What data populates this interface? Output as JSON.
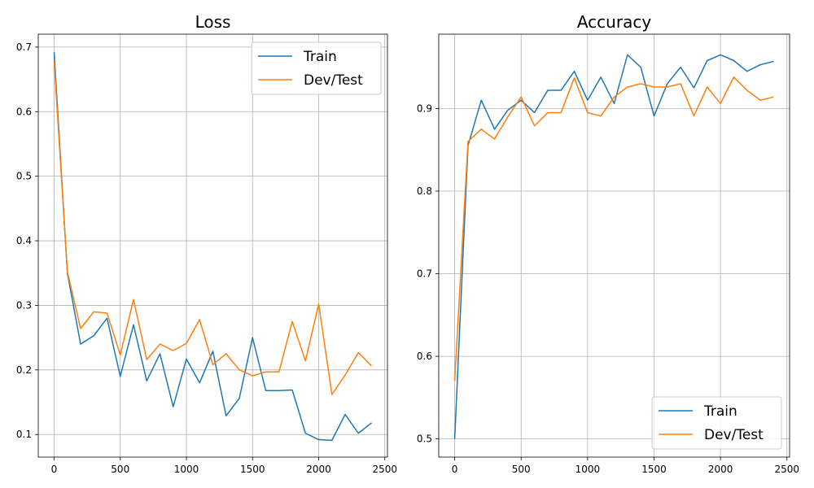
{
  "chart_data": [
    {
      "type": "line",
      "title": "Loss",
      "xlim": [
        -120,
        2520
      ],
      "ylim": [
        0.065,
        0.72
      ],
      "xticks": [
        0,
        500,
        1000,
        1500,
        2000,
        2500
      ],
      "yticks": [
        0.1,
        0.2,
        0.3,
        0.4,
        0.5,
        0.6,
        0.7
      ],
      "ytick_decimals": 1,
      "grid": true,
      "legend": "upper right",
      "x": [
        0,
        100,
        200,
        300,
        400,
        500,
        600,
        700,
        800,
        900,
        1000,
        1100,
        1200,
        1300,
        1400,
        1500,
        1600,
        1700,
        1800,
        1900,
        2000,
        2100,
        2200,
        2300,
        2400
      ],
      "series": [
        {
          "name": "Train",
          "color": "#1f77b4",
          "values": [
            0.692,
            0.35,
            0.24,
            0.253,
            0.28,
            0.19,
            0.27,
            0.183,
            0.225,
            0.143,
            0.217,
            0.18,
            0.229,
            0.129,
            0.156,
            0.25,
            0.168,
            0.168,
            0.169,
            0.102,
            0.092,
            0.091,
            0.131,
            0.102,
            0.118
          ]
        },
        {
          "name": "Dev/Test",
          "color": "#ff7f0e",
          "values": [
            0.678,
            0.352,
            0.264,
            0.29,
            0.288,
            0.223,
            0.309,
            0.216,
            0.24,
            0.23,
            0.241,
            0.278,
            0.208,
            0.225,
            0.2,
            0.191,
            0.197,
            0.197,
            0.275,
            0.214,
            0.302,
            0.162,
            0.192,
            0.227,
            0.206
          ]
        }
      ]
    },
    {
      "type": "line",
      "title": "Accuracy",
      "xlim": [
        -120,
        2520
      ],
      "ylim": [
        0.478,
        0.99
      ],
      "xticks": [
        0,
        500,
        1000,
        1500,
        2000,
        2500
      ],
      "yticks": [
        0.5,
        0.6,
        0.7,
        0.8,
        0.9
      ],
      "ytick_decimals": 1,
      "grid": true,
      "legend": "lower right",
      "x": [
        0,
        100,
        200,
        300,
        400,
        500,
        600,
        700,
        800,
        900,
        1000,
        1100,
        1200,
        1300,
        1400,
        1500,
        1600,
        1700,
        1800,
        1900,
        2000,
        2100,
        2200,
        2300,
        2400
      ],
      "series": [
        {
          "name": "Train",
          "color": "#1f77b4",
          "values": [
            0.5,
            0.855,
            0.91,
            0.875,
            0.898,
            0.91,
            0.895,
            0.922,
            0.922,
            0.945,
            0.91,
            0.938,
            0.906,
            0.965,
            0.95,
            0.891,
            0.93,
            0.95,
            0.925,
            0.958,
            0.965,
            0.958,
            0.945,
            0.953,
            0.957
          ]
        },
        {
          "name": "Dev/Test",
          "color": "#ff7f0e",
          "values": [
            0.57,
            0.86,
            0.875,
            0.863,
            0.89,
            0.914,
            0.879,
            0.895,
            0.895,
            0.937,
            0.895,
            0.891,
            0.914,
            0.926,
            0.93,
            0.926,
            0.926,
            0.93,
            0.891,
            0.926,
            0.906,
            0.938,
            0.922,
            0.91,
            0.914
          ]
        }
      ]
    }
  ]
}
